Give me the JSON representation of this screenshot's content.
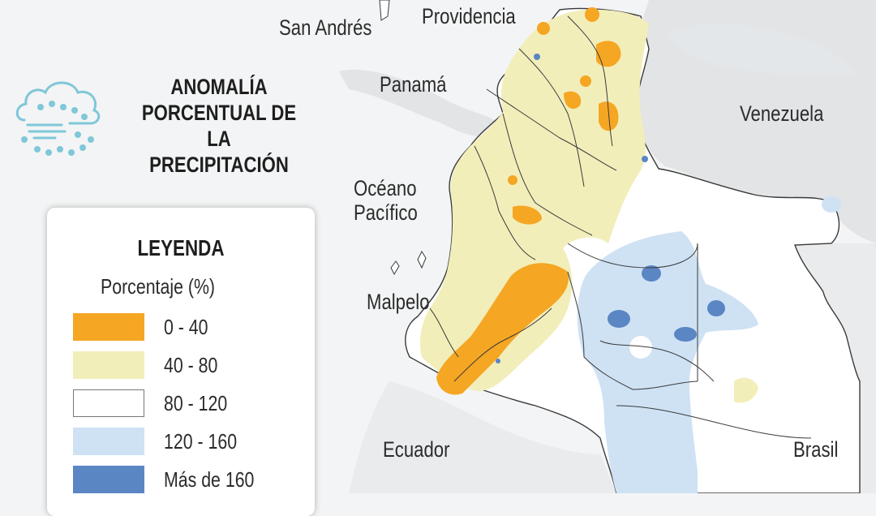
{
  "title_lines": [
    "ANOMALÍA",
    "PORCENTUAL DE LA",
    "PRECIPITACIÓN"
  ],
  "place_labels": {
    "san_andres": "San Andrés",
    "providencia": "Providencia",
    "panama": "Panamá",
    "venezuela": "Venezuela",
    "oceano": "Océano",
    "pacifico": "Pacífico",
    "malpelo": "Malpelo",
    "ecuador": "Ecuador",
    "brasil": "Brasil"
  },
  "legend": {
    "title": "LEYENDA",
    "subtitle": "Porcentaje (%)",
    "items": [
      {
        "label": "0 - 40",
        "color": "#f5a623"
      },
      {
        "label": "40 - 80",
        "color": "#f2eeba"
      },
      {
        "label": "80 - 120",
        "color": "#ffffff"
      },
      {
        "label": "120 - 160",
        "color": "#cfe2f4"
      },
      {
        "label": "Más de 160",
        "color": "#5b86c4"
      }
    ]
  },
  "colors": {
    "background": "#f3f4f5",
    "neighbor_land": "#e4e6e8",
    "land_white": "#ffffff",
    "border": "#3a3a3a",
    "icon": "#7fc7d9"
  },
  "icon_name": "rain-cloud-icon"
}
